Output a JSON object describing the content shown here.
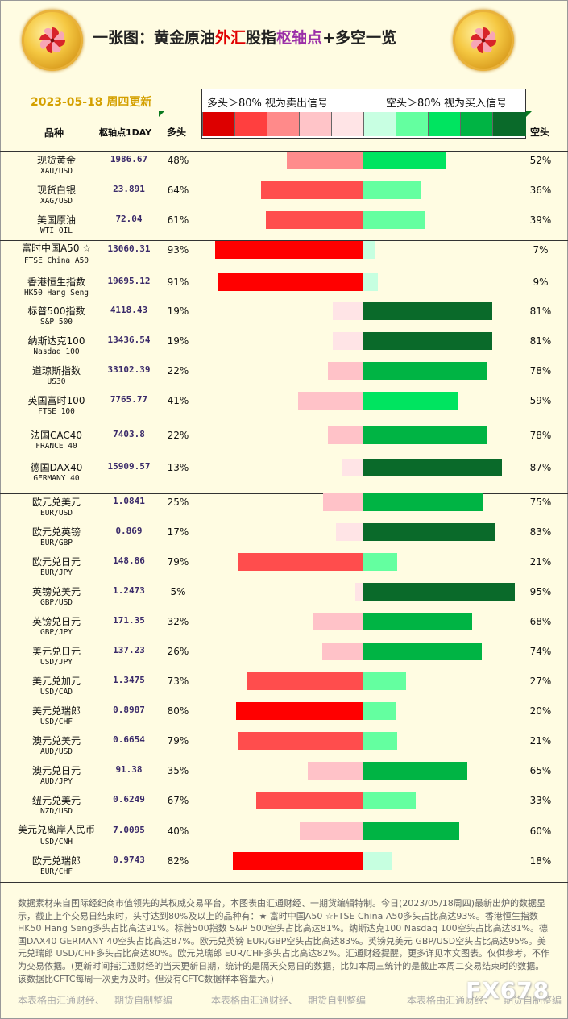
{
  "header": {
    "title_parts": [
      {
        "text": "一张图：黄金原油",
        "color": "normal"
      },
      {
        "text": "外汇",
        "color": "red"
      },
      {
        "text": "股指",
        "color": "normal"
      },
      {
        "text": "枢轴点",
        "color": "purple"
      },
      {
        "text": "+多空一览",
        "color": "normal"
      }
    ],
    "date": "2023-05-18 周四更新",
    "legend_long": "多头＞80% 视为卖出信号",
    "legend_short": "空头＞80% 视为买入信号",
    "col_name": "品种",
    "col_pivot": "枢轴点1DAY",
    "col_long": "多头",
    "col_short": "空头"
  },
  "legend_colors": [
    "#dd0000",
    "#ff3f3f",
    "#ff8a8a",
    "#ffc4c8",
    "#ffe4e6",
    "#c8ffe2",
    "#64ffa0",
    "#00e460",
    "#00b444",
    "#0a6a2a"
  ],
  "chart_data": {
    "type": "bar",
    "title": "",
    "series": [
      {
        "name": "多头",
        "values": [
          48,
          64,
          61,
          93,
          91,
          19,
          19,
          22,
          41,
          22,
          13,
          25,
          17,
          79,
          5,
          32,
          26,
          73,
          80,
          79,
          35,
          67,
          40,
          82
        ]
      },
      {
        "name": "空头",
        "values": [
          52,
          36,
          39,
          7,
          9,
          81,
          81,
          78,
          59,
          78,
          87,
          75,
          83,
          21,
          95,
          68,
          74,
          27,
          20,
          21,
          65,
          33,
          60,
          18
        ]
      }
    ],
    "categories": [
      "现货黄金",
      "现货白银",
      "美国原油",
      "富时中国A50",
      "香港恒生指数",
      "标普500指数",
      "纳斯达克100",
      "道琼斯指数",
      "英国富时100",
      "法国CAC40",
      "德国DAX40",
      "欧元兑美元",
      "欧元兑英镑",
      "欧元兑日元",
      "英镑兑美元",
      "英镑兑日元",
      "美元兑日元",
      "美元兑加元",
      "美元兑瑞郎",
      "澳元兑美元",
      "澳元兑日元",
      "纽元兑美元",
      "美元兑离岸人民币",
      "欧元兑瑞郎"
    ],
    "unit": "%"
  },
  "rows": [
    {
      "cn": "现货黄金",
      "en": "XAU/USD",
      "pivot": "1986.67",
      "long": "48%",
      "short": "52%"
    },
    {
      "cn": "现货白银",
      "en": "XAG/USD",
      "pivot": "23.891",
      "long": "64%",
      "short": "36%"
    },
    {
      "cn": "美国原油",
      "en": "WTI OIL",
      "pivot": "72.04",
      "long": "61%",
      "short": "39%"
    },
    {
      "cn": "富时中国A50 ☆",
      "en": "FTSE China A50",
      "pivot": "13060.31",
      "long": "93%",
      "short": "7%"
    },
    {
      "cn": "香港恒生指数",
      "en": "HK50 Hang Seng",
      "pivot": "19695.12",
      "long": "91%",
      "short": "9%"
    },
    {
      "cn": "标普500指数",
      "en": "S&P 500",
      "pivot": "4118.43",
      "long": "19%",
      "short": "81%"
    },
    {
      "cn": "纳斯达克100",
      "en": "Nasdaq 100",
      "pivot": "13436.54",
      "long": "19%",
      "short": "81%"
    },
    {
      "cn": "道琼斯指数",
      "en": "US30",
      "pivot": "33102.39",
      "long": "22%",
      "short": "78%"
    },
    {
      "cn": "英国富时100",
      "en": "FTSE 100",
      "pivot": "7765.77",
      "long": "41%",
      "short": "59%"
    },
    {
      "cn": "法国CAC40",
      "en": "FRANCE 40",
      "pivot": "7403.8",
      "long": "22%",
      "short": "78%"
    },
    {
      "cn": "德国DAX40",
      "en": "GERMANY 40",
      "pivot": "15909.57",
      "long": "13%",
      "short": "87%"
    },
    {
      "cn": "欧元兑美元",
      "en": "EUR/USD",
      "pivot": "1.0841",
      "long": "25%",
      "short": "75%"
    },
    {
      "cn": "欧元兑英镑",
      "en": "EUR/GBP",
      "pivot": "0.869",
      "long": "17%",
      "short": "83%"
    },
    {
      "cn": "欧元兑日元",
      "en": "EUR/JPY",
      "pivot": "148.86",
      "long": "79%",
      "short": "21%"
    },
    {
      "cn": "英镑兑美元",
      "en": "GBP/USD",
      "pivot": "1.2473",
      "long": "5%",
      "short": "95%"
    },
    {
      "cn": "英镑兑日元",
      "en": "GBP/JPY",
      "pivot": "171.35",
      "long": "32%",
      "short": "68%"
    },
    {
      "cn": "美元兑日元",
      "en": "USD/JPY",
      "pivot": "137.23",
      "long": "26%",
      "short": "74%"
    },
    {
      "cn": "美元兑加元",
      "en": "USD/CAD",
      "pivot": "1.3475",
      "long": "73%",
      "short": "27%"
    },
    {
      "cn": "美元兑瑞郎",
      "en": "USD/CHF",
      "pivot": "0.8987",
      "long": "80%",
      "short": "20%"
    },
    {
      "cn": "澳元兑美元",
      "en": "AUD/USD",
      "pivot": "0.6654",
      "long": "79%",
      "short": "21%"
    },
    {
      "cn": "澳元兑日元",
      "en": "AUD/JPY",
      "pivot": "91.38",
      "long": "35%",
      "short": "65%"
    },
    {
      "cn": "纽元兑美元",
      "en": "NZD/USD",
      "pivot": "0.6249",
      "long": "67%",
      "short": "33%"
    },
    {
      "cn": "美元兑离岸人民币",
      "en": "USD/CNH",
      "pivot": "7.0095",
      "long": "40%",
      "short": "60%"
    },
    {
      "cn": "欧元兑瑞郎",
      "en": "EUR/CHF",
      "pivot": "0.9743",
      "long": "82%",
      "short": "18%"
    }
  ],
  "footer": {
    "text": "数据素材来自国际经纪商市值领先的某权威交易平台，本图表由汇通财经、一期货编辑特制。今日(2023/05/18周四)最新出炉的数据显示，截止上个交易日结束时，头寸达到80%及以上的品种有：★ 富时中国A50 ☆FTSE China A50多头占比高达93%。香港恒生指数 HK50 Hang Seng多头占比高达91%。标普500指数 S&P 500空头占比高达81%。纳斯达克100 Nasdaq 100空头占比高达81%。德国DAX40 GERMANY 40空头占比高达87%。欧元兑英镑 EUR/GBP空头占比高达83%。英镑兑美元 GBP/USD空头占比高达95%。美元兑瑞郎 USD/CHF多头占比高达80%。欧元兑瑞郎 EUR/CHF多头占比高达82%。汇通财经提醒，更多详见本文图表。仅供参考，不作为交易依据。(更新时间指汇通财经的当天更新日期，统计的是隔天交易日的数据，比如本周三统计的是截止本周二交易结束时的数据。该数据比CFTC每周一次更为及时。但没有CFTC数据样本容量大。)",
    "watermark": "本表格由汇通财经、一期货自制整编",
    "brand": "FX678"
  }
}
